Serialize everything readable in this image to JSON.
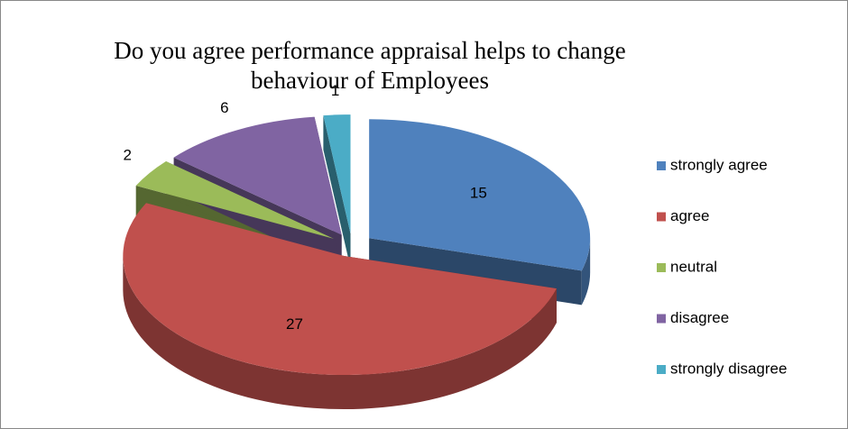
{
  "chart_data": {
    "type": "pie3d",
    "title": "Do you agree performance appraisal helps to change behaviour of Employees",
    "categories": [
      "strongly agree",
      "agree",
      "neutral",
      "disagree",
      "strongly disagree"
    ],
    "values": [
      15,
      27,
      2,
      6,
      1
    ],
    "colors": [
      "#4f81bd",
      "#c0504d",
      "#9bbb59",
      "#8064a2",
      "#4bacc6"
    ],
    "legend": "right"
  }
}
